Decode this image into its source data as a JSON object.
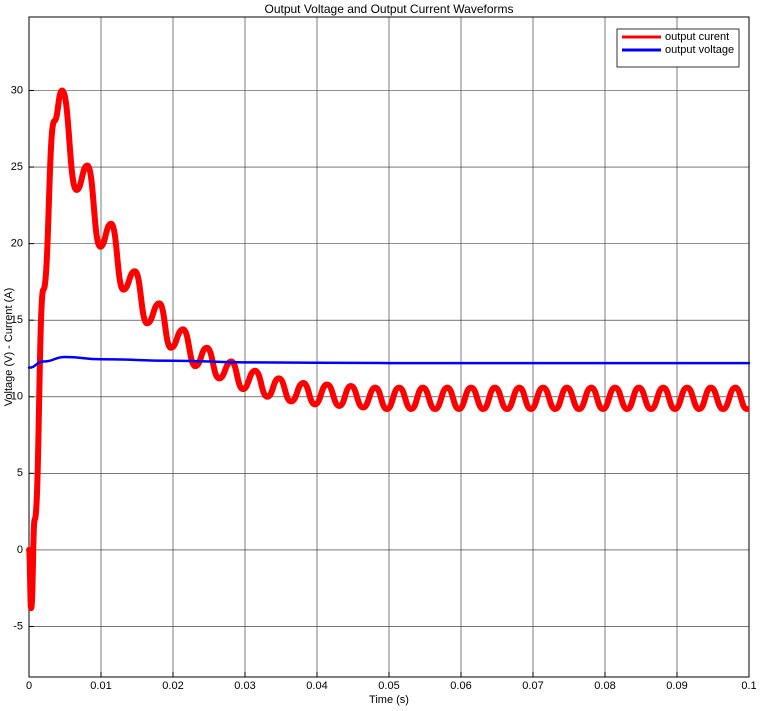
{
  "chart_data": {
    "type": "line",
    "title": "Output Voltage and Output Current Waveforms",
    "xlabel": "Time (s)",
    "ylabel": "Voltage (V) - Current (A)",
    "xlim": [
      0,
      0.1
    ],
    "ylim": [
      -8.3,
      34.8
    ],
    "xticks": [
      0,
      0.01,
      0.02,
      0.03,
      0.04,
      0.05,
      0.06,
      0.07,
      0.08,
      0.09,
      0.1
    ],
    "yticks": [
      -5,
      0,
      5,
      10,
      15,
      20,
      25,
      30
    ],
    "grid": true,
    "legend": "upper right",
    "series": [
      {
        "name": "output curent",
        "color": "#ff0000",
        "x": [
          0,
          0.0003,
          0.0008,
          0.002,
          0.0035,
          0.0046,
          0.0066,
          0.0081,
          0.0099,
          0.0114,
          0.0131,
          0.0147,
          0.0164,
          0.0181,
          0.0197,
          0.0214,
          0.0231,
          0.0247,
          0.0264,
          0.0281,
          0.0297,
          0.0314,
          0.0331,
          0.0347,
          0.0364,
          0.0381,
          0.0397,
          0.0414,
          0.0431,
          0.0447,
          0.0464,
          0.0481,
          0.0497,
          0.0514,
          0.0531,
          0.0547,
          0.0564,
          0.0581,
          0.0597,
          0.0614,
          0.0631,
          0.0647,
          0.0664,
          0.0681,
          0.0697,
          0.0714,
          0.0731,
          0.0747,
          0.0764,
          0.0781,
          0.0797,
          0.0814,
          0.0831,
          0.0847,
          0.0864,
          0.0881,
          0.0897,
          0.0914,
          0.0931,
          0.0947,
          0.0964,
          0.0981,
          0.0997
        ],
        "values": [
          0,
          -3.8,
          2,
          17,
          28,
          30,
          23.5,
          25.1,
          19.8,
          21.3,
          17.0,
          18.2,
          14.8,
          16.1,
          13.2,
          14.4,
          12.0,
          13.2,
          11.2,
          12.3,
          10.5,
          11.7,
          10.0,
          11.2,
          9.7,
          10.9,
          9.5,
          10.8,
          9.4,
          10.7,
          9.3,
          10.6,
          9.2,
          10.6,
          9.2,
          10.6,
          9.2,
          10.6,
          9.2,
          10.6,
          9.2,
          10.6,
          9.2,
          10.6,
          9.2,
          10.6,
          9.2,
          10.6,
          9.2,
          10.6,
          9.2,
          10.6,
          9.2,
          10.6,
          9.2,
          10.6,
          9.2,
          10.6,
          9.2,
          10.6,
          9.2,
          10.6,
          9.2
        ]
      },
      {
        "name": "output voltage",
        "color": "#0000ff",
        "x": [
          0,
          0.002,
          0.005,
          0.01,
          0.02,
          0.03,
          0.05,
          0.1
        ],
        "values": [
          11.9,
          12.3,
          12.6,
          12.45,
          12.35,
          12.25,
          12.2,
          12.2
        ]
      }
    ]
  }
}
